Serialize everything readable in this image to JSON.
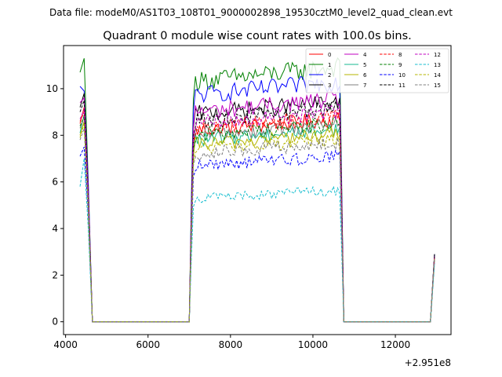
{
  "chart_data": {
    "type": "line",
    "suptitle": "Data file: modeM0/AS1T03_108T01_9000002898_19530cztM0_level2_quad_clean.evt",
    "title": "Quadrant 0 module wise count rates with 100.0s bins.",
    "xlabel": "",
    "ylabel": "",
    "offset_label": "+2.951e8",
    "xlim": [
      3950,
      13350
    ],
    "ylim": [
      -0.55,
      11.85
    ],
    "xticks": [
      4000,
      6000,
      8000,
      10000,
      12000
    ],
    "yticks": [
      0,
      2,
      4,
      6,
      8,
      10
    ],
    "xtick_labels": [
      "4000",
      "6000",
      "8000",
      "10000",
      "12000"
    ],
    "ytick_labels": [
      "0",
      "2",
      "4",
      "6",
      "8",
      "10"
    ],
    "legend_placement": "top-right",
    "legend_columns": 4,
    "x_first_segment": [
      4350,
      4450,
      4550,
      4650
    ],
    "x_second_segment_start": 7050,
    "x_second_segment_step": 50,
    "x_zero_segment": [
      4650,
      7000
    ],
    "x_last_zero_segment": [
      10750,
      12850
    ],
    "x_last_rise": [
      12850,
      12950
    ],
    "series": [
      {
        "name": "0",
        "color": "#ff0000",
        "dash": "solid",
        "first": [
          8.5,
          9.2,
          5.0,
          0.0
        ],
        "level": 8.2,
        "final": 2.9
      },
      {
        "name": "1",
        "color": "#008000",
        "dash": "solid",
        "first": [
          10.7,
          11.3,
          6.0,
          0.0
        ],
        "level": 10.3,
        "final": 2.9
      },
      {
        "name": "2",
        "color": "#0000ff",
        "dash": "solid",
        "first": [
          10.1,
          9.9,
          5.9,
          0.0
        ],
        "level": 9.7,
        "final": 2.9
      },
      {
        "name": "3",
        "color": "#000000",
        "dash": "solid",
        "first": [
          9.2,
          9.8,
          5.5,
          0.0
        ],
        "level": 8.9,
        "final": 2.9
      },
      {
        "name": "4",
        "color": "#c000c0",
        "dash": "solid",
        "first": [
          9.4,
          9.6,
          5.6,
          0.0
        ],
        "level": 9.0,
        "final": 2.8
      },
      {
        "name": "5",
        "color": "#17b890",
        "dash": "solid",
        "first": [
          8.1,
          8.9,
          5.0,
          0.0
        ],
        "level": 7.8,
        "final": 2.8
      },
      {
        "name": "6",
        "color": "#b5b500",
        "dash": "solid",
        "first": [
          8.0,
          8.6,
          4.9,
          0.0
        ],
        "level": 7.6,
        "final": 2.7
      },
      {
        "name": "7",
        "color": "#808080",
        "dash": "solid",
        "first": [
          8.3,
          8.8,
          5.0,
          0.0
        ],
        "level": 8.0,
        "final": 2.7
      },
      {
        "name": "8",
        "color": "#ff0000",
        "dash": "dashed",
        "first": [
          8.6,
          9.0,
          5.2,
          0.0
        ],
        "level": 8.3,
        "final": 2.8
      },
      {
        "name": "9",
        "color": "#008000",
        "dash": "dashed",
        "first": [
          8.4,
          8.8,
          5.1,
          0.0
        ],
        "level": 8.0,
        "final": 2.8
      },
      {
        "name": "10",
        "color": "#0000ff",
        "dash": "dashed",
        "first": [
          7.1,
          7.5,
          4.6,
          0.0
        ],
        "level": 6.7,
        "final": 2.6
      },
      {
        "name": "11",
        "color": "#000000",
        "dash": "dashed",
        "first": [
          9.0,
          9.5,
          5.3,
          0.0
        ],
        "level": 8.6,
        "final": 2.8
      },
      {
        "name": "12",
        "color": "#c000c0",
        "dash": "dashed",
        "first": [
          8.7,
          9.1,
          5.2,
          0.0
        ],
        "level": 8.5,
        "final": 2.8
      },
      {
        "name": "13",
        "color": "#17becf",
        "dash": "dashed",
        "first": [
          5.8,
          7.0,
          4.0,
          0.0
        ],
        "level": 5.3,
        "final": 2.5
      },
      {
        "name": "14",
        "color": "#b5b500",
        "dash": "dashed",
        "first": [
          7.9,
          8.5,
          4.9,
          0.0
        ],
        "level": 7.4,
        "final": 2.7
      },
      {
        "name": "15",
        "color": "#808080",
        "dash": "dashed",
        "first": [
          7.8,
          8.3,
          4.8,
          0.0
        ],
        "level": 7.2,
        "final": 2.7
      }
    ]
  }
}
